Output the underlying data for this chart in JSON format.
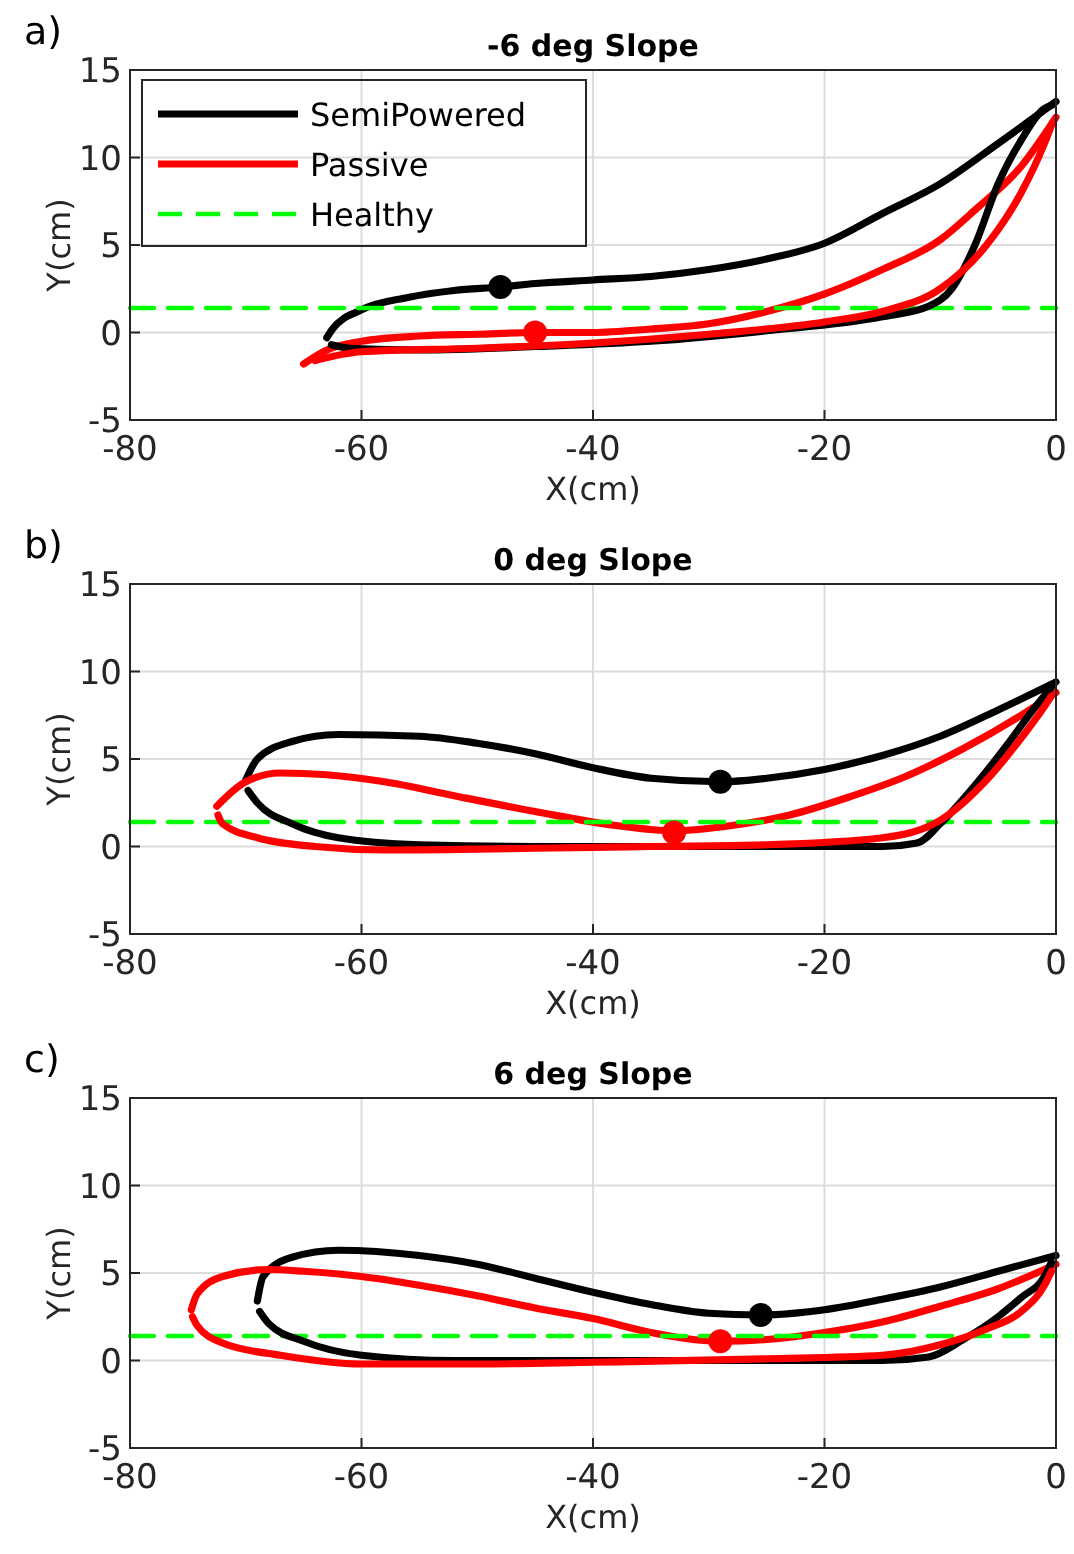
{
  "chart_data": [
    {
      "type": "line",
      "title": "-6 deg Slope",
      "xlabel": "X(cm)",
      "ylabel": "Y(cm)",
      "annotations": [
        "a)"
      ],
      "xlim": [
        -80,
        0
      ],
      "ylim": [
        -5,
        15
      ],
      "xticks": [
        -80,
        -60,
        -40,
        -20,
        0
      ],
      "yticks": [
        -5,
        0,
        5,
        10,
        15
      ],
      "grid": true,
      "legend": "top left",
      "series": [
        {
          "name": "SemiPowered",
          "color": "#000000",
          "x": [
            -63,
            -62.5,
            -60,
            -56,
            -52,
            -48,
            -45,
            -40,
            -35,
            -30,
            -25,
            -20,
            -15,
            -10,
            -5,
            0
          ],
          "values": [
            -0.3,
            0.2,
            1.3,
            2.0,
            2.4,
            2.6,
            2.8,
            3.0,
            3.2,
            3.6,
            4.2,
            5.1,
            6.8,
            8.5,
            10.8,
            13.2
          ]
        },
        {
          "name": "Passive",
          "color": "#ff0000",
          "x": [
            -65,
            -63,
            -60,
            -55,
            -50,
            -45,
            -40,
            -35,
            -30,
            -25,
            -20,
            -15,
            -10,
            -7,
            -3,
            0
          ],
          "values": [
            -1.8,
            -1.0,
            -0.5,
            -0.2,
            -0.1,
            0.0,
            0.0,
            0.2,
            0.5,
            1.2,
            2.2,
            3.6,
            5.3,
            7,
            9.5,
            12.3
          ]
        },
        {
          "name": "Healthy",
          "color": "#00ff00",
          "line_style": "dashed",
          "x": [
            -80,
            0
          ],
          "values": [
            1.4,
            1.4
          ]
        },
        {
          "color": "#000000",
          "x": [
            -62.6,
            -61,
            -55,
            -45,
            -35,
            -25,
            -15,
            -11,
            -9,
            -7,
            -5,
            -3,
            -1,
            -0.3
          ],
          "values": [
            -0.7,
            -0.9,
            -1.0,
            -0.8,
            -0.5,
            0.1,
            0.9,
            1.5,
            2.5,
            5,
            8.5,
            11,
            12.8,
            13.0
          ]
        },
        {
          "color": "#ff0000",
          "x": [
            -64,
            -60,
            -50,
            -40,
            -30,
            -20,
            -15,
            -10,
            -6,
            -3,
            -1,
            -0.3
          ],
          "values": [
            -1.6,
            -1.1,
            -0.9,
            -0.6,
            -0.1,
            0.6,
            1.2,
            2.5,
            5.0,
            8.0,
            10.8,
            12.0
          ]
        },
        {
          "type": "scatter",
          "marker": "circle",
          "color": "#000000",
          "x": [
            -48
          ],
          "values": [
            2.6
          ]
        },
        {
          "type": "scatter",
          "marker": "circle",
          "color": "#ff0000",
          "x": [
            -45
          ],
          "values": [
            0.0
          ]
        }
      ]
    },
    {
      "type": "line",
      "title": "0 deg Slope",
      "xlabel": "X(cm)",
      "ylabel": "Y(cm)",
      "annotations": [
        "b)"
      ],
      "xlim": [
        -80,
        0
      ],
      "ylim": [
        -5,
        15
      ],
      "xticks": [
        -80,
        -60,
        -40,
        -20,
        0
      ],
      "yticks": [
        -5,
        0,
        5,
        10,
        15
      ],
      "grid": true,
      "series": [
        {
          "color": "#000000",
          "x": [
            -70,
            -69,
            -66,
            -62,
            -55,
            -50,
            -45,
            -40,
            -35,
            -29,
            -25,
            -20,
            -15,
            -10,
            -5,
            0
          ],
          "values": [
            3.8,
            5.0,
            6.0,
            6.4,
            6.3,
            5.9,
            5.3,
            4.5,
            3.9,
            3.7,
            3.9,
            4.4,
            5.2,
            6.3,
            7.8,
            9.4
          ]
        },
        {
          "color": "#ff0000",
          "x": [
            -72.5,
            -70,
            -67,
            -63,
            -58,
            -52,
            -45,
            -38,
            -33,
            -28,
            -23,
            -18,
            -13,
            -8,
            -3,
            0
          ],
          "values": [
            2.3,
            3.7,
            4.2,
            4.1,
            3.7,
            2.9,
            2.0,
            1.2,
            0.9,
            1.2,
            1.8,
            2.8,
            4.0,
            5.6,
            7.5,
            8.8
          ]
        },
        {
          "color": "#00ff00",
          "line_style": "dashed",
          "x": [
            -80,
            0
          ],
          "values": [
            1.4,
            1.4
          ]
        },
        {
          "color": "#000000",
          "x": [
            -69.8,
            -69,
            -66,
            -62,
            -55,
            -45,
            -35,
            -25,
            -15,
            -12,
            -10,
            -7,
            -4,
            -2,
            -0.4
          ],
          "values": [
            3.2,
            2.5,
            1.3,
            0.5,
            0.1,
            0.0,
            0.0,
            0.0,
            0.0,
            0.2,
            1.3,
            3.5,
            6.0,
            7.8,
            9.1
          ]
        },
        {
          "color": "#ff0000",
          "x": [
            -72.4,
            -72,
            -69,
            -64,
            -58,
            -45,
            -35,
            -25,
            -15,
            -10,
            -6,
            -3,
            -1,
            -0.4
          ],
          "values": [
            1.8,
            1.3,
            0.5,
            0.0,
            -0.2,
            -0.1,
            0.0,
            0.1,
            0.5,
            1.5,
            3.8,
            6.2,
            8.0,
            8.6
          ]
        },
        {
          "type": "scatter",
          "marker": "circle",
          "color": "#000000",
          "x": [
            -29
          ],
          "values": [
            3.7
          ]
        },
        {
          "type": "scatter",
          "marker": "circle",
          "color": "#ff0000",
          "x": [
            -33
          ],
          "values": [
            0.8
          ]
        }
      ]
    },
    {
      "type": "line",
      "title": "6 deg Slope",
      "xlabel": "X(cm)",
      "ylabel": "Y(cm)",
      "annotations": [
        "c)"
      ],
      "xlim": [
        -80,
        0
      ],
      "ylim": [
        -5,
        15
      ],
      "xticks": [
        -80,
        -60,
        -40,
        -20,
        0
      ],
      "yticks": [
        -5,
        0,
        5,
        10,
        15
      ],
      "grid": true,
      "series": [
        {
          "color": "#000000",
          "x": [
            -69,
            -68.5,
            -66,
            -62,
            -55,
            -50,
            -45,
            -40,
            -35,
            -30,
            -25.5,
            -20,
            -15,
            -10,
            -5,
            0
          ],
          "values": [
            3.4,
            4.8,
            5.9,
            6.3,
            6.0,
            5.5,
            4.7,
            3.9,
            3.2,
            2.7,
            2.6,
            2.9,
            3.5,
            4.2,
            5.1,
            6.0
          ]
        },
        {
          "color": "#ff0000",
          "x": [
            -74.7,
            -74.2,
            -72,
            -68,
            -65,
            -60,
            -55,
            -50,
            -45,
            -40,
            -35,
            -29,
            -25,
            -20,
            -15,
            -10,
            -5,
            0
          ],
          "values": [
            2.9,
            3.8,
            4.8,
            5.2,
            5.1,
            4.8,
            4.3,
            3.7,
            3.0,
            2.4,
            1.6,
            1.1,
            1.2,
            1.6,
            2.2,
            3.1,
            4.1,
            5.5
          ]
        },
        {
          "color": "#00ff00",
          "line_style": "dashed",
          "x": [
            -80,
            0
          ],
          "values": [
            1.4,
            1.4
          ]
        },
        {
          "color": "#000000",
          "x": [
            -68.8,
            -68,
            -65,
            -60,
            -52,
            -40,
            -25,
            -15,
            -11,
            -8,
            -5,
            -3,
            -1,
            -0.4
          ],
          "values": [
            2.8,
            2.1,
            1.1,
            0.3,
            0.0,
            0.0,
            0.0,
            0.0,
            0.2,
            1.2,
            2.5,
            3.6,
            4.8,
            5.6
          ]
        },
        {
          "color": "#ff0000",
          "x": [
            -74.6,
            -74.2,
            -72,
            -67,
            -60,
            -50,
            -40,
            -25,
            -15,
            -10,
            -6,
            -3,
            -1,
            -0.4
          ],
          "values": [
            2.5,
            2.0,
            1.0,
            0.3,
            -0.2,
            -0.2,
            -0.1,
            0.1,
            0.3,
            0.9,
            1.8,
            2.8,
            4.3,
            5.1
          ]
        },
        {
          "type": "scatter",
          "marker": "circle",
          "color": "#000000",
          "x": [
            -25.5
          ],
          "values": [
            2.6
          ]
        },
        {
          "type": "scatter",
          "marker": "circle",
          "color": "#ff0000",
          "x": [
            -29
          ],
          "values": [
            1.1
          ]
        }
      ]
    }
  ]
}
